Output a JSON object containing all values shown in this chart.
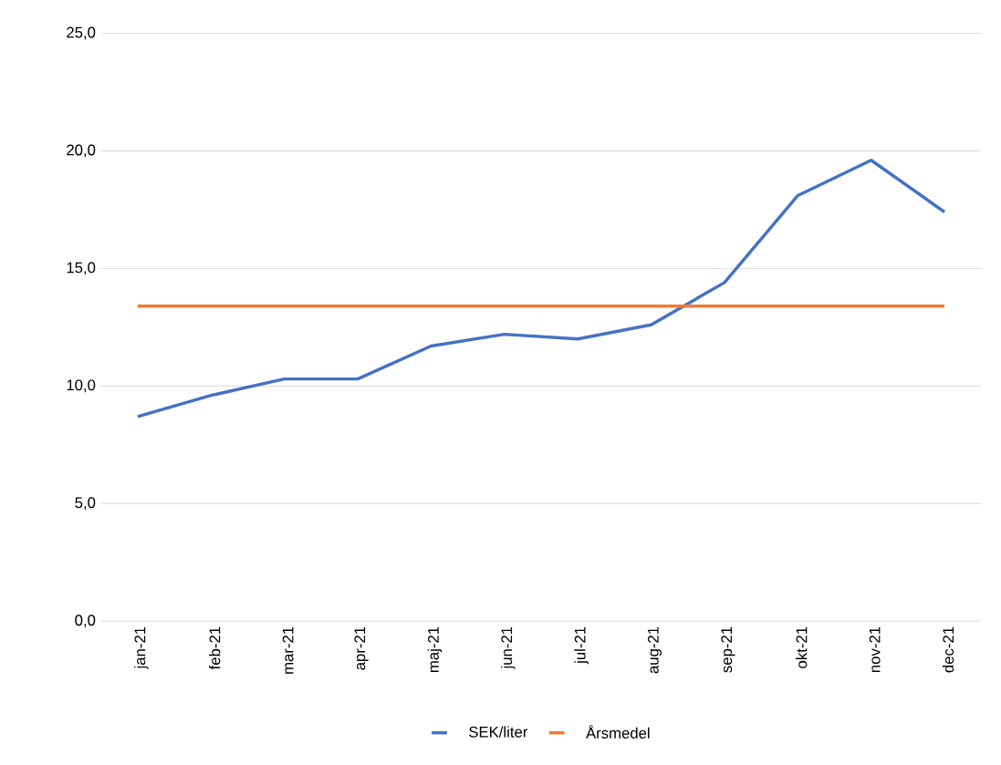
{
  "chart_data": {
    "type": "line",
    "categories": [
      "jan-21",
      "feb-21",
      "mar-21",
      "apr-21",
      "maj-21",
      "jun-21",
      "jul-21",
      "aug-21",
      "sep-21",
      "okt-21",
      "nov-21",
      "dec-21"
    ],
    "series": [
      {
        "name": "SEK/liter",
        "color": "#4472c4",
        "values": [
          8.7,
          9.6,
          10.3,
          10.3,
          11.7,
          12.2,
          12.0,
          12.6,
          14.4,
          18.1,
          19.6,
          17.4
        ]
      },
      {
        "name": "Årsmedel",
        "color": "#ed7d31",
        "values": [
          13.4,
          13.4,
          13.4,
          13.4,
          13.4,
          13.4,
          13.4,
          13.4,
          13.4,
          13.4,
          13.4,
          13.4
        ]
      }
    ],
    "ylim": [
      0,
      25
    ],
    "yticks": [
      {
        "value": 0,
        "label": "0,0"
      },
      {
        "value": 5,
        "label": "5,0"
      },
      {
        "value": 10,
        "label": "10,0"
      },
      {
        "value": 15,
        "label": "15,0"
      },
      {
        "value": 20,
        "label": "20,0"
      },
      {
        "value": 25,
        "label": "25,0"
      }
    ],
    "grid": "y",
    "legend": "bottom"
  }
}
